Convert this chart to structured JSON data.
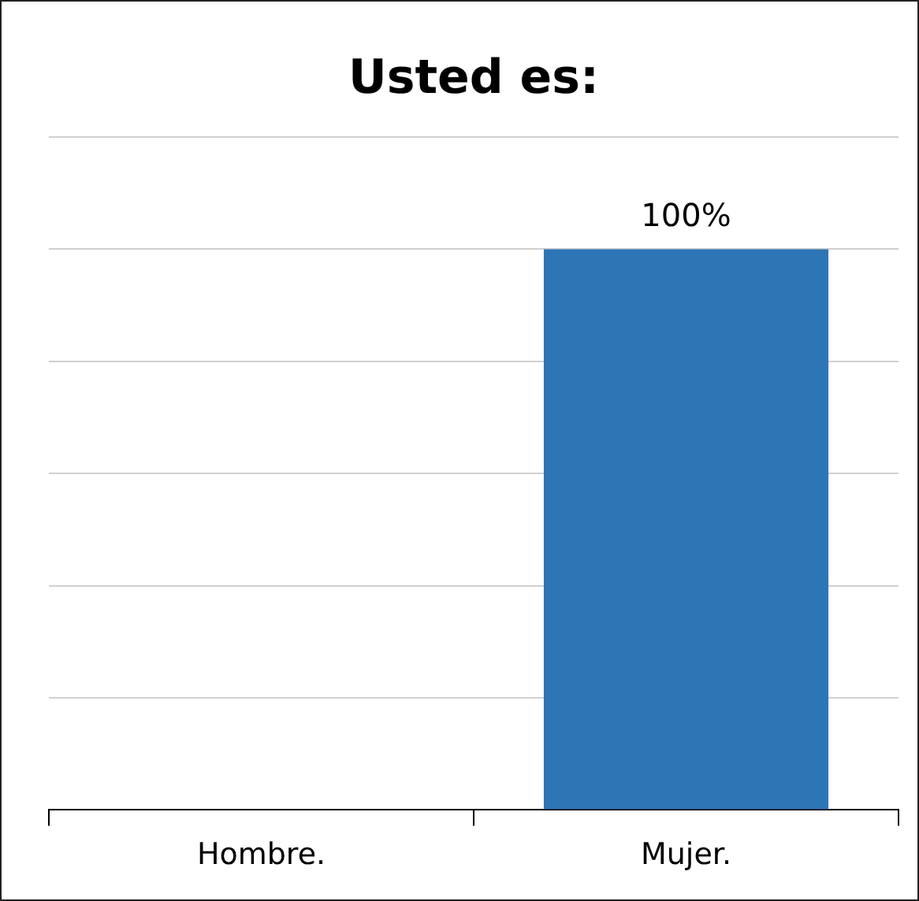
{
  "chart_data": {
    "type": "bar",
    "title": "Usted es:",
    "categories": [
      "Hombre.",
      "Mujer."
    ],
    "values": [
      0,
      100
    ],
    "value_labels": [
      null,
      "100%"
    ],
    "color": "#2e75b6",
    "ylim": [
      0,
      120
    ],
    "yticks": [
      {
        "value": 0,
        "label": null
      },
      {
        "value": 20,
        "label": null
      },
      {
        "value": 40,
        "label": null
      },
      {
        "value": 60,
        "label": null
      },
      {
        "value": 80,
        "label": null
      },
      {
        "value": 100,
        "label": null
      },
      {
        "value": 120,
        "label": null
      }
    ],
    "tick_labels": "x",
    "grid": "y",
    "legend": false
  }
}
